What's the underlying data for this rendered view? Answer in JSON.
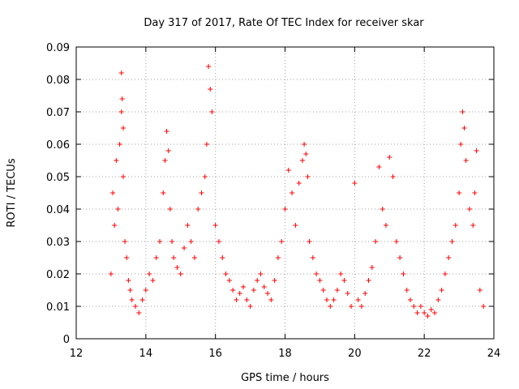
{
  "chart_data": {
    "type": "scatter",
    "title": "Day 317 of 2017, Rate Of TEC Index for receiver skar",
    "xlabel": "GPS time / hours",
    "ylabel": "ROTI / TECUs",
    "xlim": [
      12,
      24
    ],
    "ylim": [
      0,
      0.09
    ],
    "xticks": [
      "12",
      "14",
      "16",
      "18",
      "20",
      "22",
      "24"
    ],
    "yticks": [
      "0",
      "0.01",
      "0.02",
      "0.03",
      "0.04",
      "0.05",
      "0.06",
      "0.07",
      "0.08",
      "0.09"
    ],
    "grid": true,
    "marker": "+",
    "color": "#ff0000",
    "points_x": [
      13.0,
      13.05,
      13.1,
      13.15,
      13.2,
      13.25,
      13.3,
      13.3,
      13.32,
      13.35,
      13.35,
      13.4,
      13.45,
      13.5,
      13.55,
      13.6,
      13.7,
      13.8,
      13.9,
      14.0,
      14.1,
      14.2,
      14.3,
      14.4,
      14.5,
      14.55,
      14.6,
      14.65,
      14.7,
      14.75,
      14.8,
      14.9,
      15.0,
      15.1,
      15.2,
      15.3,
      15.4,
      15.5,
      15.6,
      15.7,
      15.75,
      15.8,
      15.85,
      15.9,
      16.0,
      16.1,
      16.2,
      16.3,
      16.4,
      16.5,
      16.6,
      16.7,
      16.8,
      16.9,
      17.0,
      17.1,
      17.2,
      17.3,
      17.4,
      17.5,
      17.6,
      17.7,
      17.8,
      17.9,
      18.0,
      18.1,
      18.2,
      18.3,
      18.4,
      18.5,
      18.55,
      18.6,
      18.65,
      18.7,
      18.8,
      18.9,
      19.0,
      19.1,
      19.2,
      19.3,
      19.4,
      19.5,
      19.6,
      19.7,
      19.8,
      19.9,
      20.0,
      20.1,
      20.2,
      20.3,
      20.4,
      20.5,
      20.6,
      20.7,
      20.8,
      20.9,
      21.0,
      21.1,
      21.2,
      21.3,
      21.4,
      21.5,
      21.6,
      21.7,
      21.8,
      21.9,
      22.0,
      22.1,
      22.2,
      22.3,
      22.4,
      22.5,
      22.6,
      22.7,
      22.8,
      22.9,
      23.0,
      23.05,
      23.1,
      23.15,
      23.2,
      23.3,
      23.4,
      23.45,
      23.5,
      23.6,
      23.7
    ],
    "points_y": [
      0.02,
      0.045,
      0.035,
      0.055,
      0.04,
      0.06,
      0.07,
      0.082,
      0.074,
      0.065,
      0.05,
      0.03,
      0.025,
      0.018,
      0.015,
      0.012,
      0.01,
      0.008,
      0.012,
      0.015,
      0.02,
      0.018,
      0.025,
      0.03,
      0.045,
      0.055,
      0.064,
      0.058,
      0.04,
      0.03,
      0.025,
      0.022,
      0.02,
      0.028,
      0.035,
      0.03,
      0.025,
      0.04,
      0.045,
      0.05,
      0.06,
      0.084,
      0.077,
      0.07,
      0.035,
      0.03,
      0.025,
      0.02,
      0.018,
      0.015,
      0.012,
      0.014,
      0.016,
      0.012,
      0.01,
      0.015,
      0.018,
      0.02,
      0.016,
      0.014,
      0.012,
      0.018,
      0.025,
      0.03,
      0.04,
      0.052,
      0.045,
      0.035,
      0.048,
      0.055,
      0.06,
      0.057,
      0.05,
      0.03,
      0.025,
      0.02,
      0.018,
      0.015,
      0.012,
      0.01,
      0.012,
      0.015,
      0.02,
      0.018,
      0.014,
      0.01,
      0.048,
      0.012,
      0.01,
      0.014,
      0.018,
      0.022,
      0.03,
      0.053,
      0.04,
      0.035,
      0.056,
      0.05,
      0.03,
      0.025,
      0.02,
      0.015,
      0.012,
      0.01,
      0.008,
      0.01,
      0.008,
      0.007,
      0.009,
      0.008,
      0.012,
      0.015,
      0.02,
      0.025,
      0.03,
      0.035,
      0.045,
      0.06,
      0.07,
      0.065,
      0.055,
      0.04,
      0.035,
      0.045,
      0.058,
      0.015,
      0.01
    ]
  }
}
